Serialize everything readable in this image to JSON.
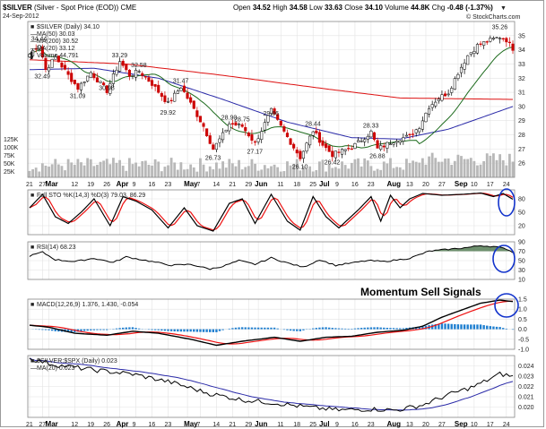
{
  "header": {
    "symbol": "$SILVER",
    "name": "(Silver - Spot Price (EOD))",
    "exchange": "CME",
    "date": "24-Sep-2012",
    "open_label": "Open",
    "open": "34.52",
    "high_label": "High",
    "high": "34.58",
    "low_label": "Low",
    "low": "33.63",
    "close_label": "Close",
    "close": "34.10",
    "volume_label": "Volume",
    "volume": "44.8K",
    "chg_label": "Chg",
    "chg": "-0.48 (-1.37%)",
    "watermark": "© StockCharts.com"
  },
  "annotation": "Momentum Sell Signals",
  "colors": {
    "up": "#000000",
    "down": "#cc0000",
    "ma50": "#2a2aa8",
    "ma200": "#dd1111",
    "ma20": "#1d6b1d",
    "signal": "#ee1111",
    "hist": "#1f7fd0",
    "circle": "#1233cc"
  },
  "chart_data": [
    {
      "id": "price",
      "type": "candlestick",
      "legend": [
        "$SILVER (Daily) 34.10",
        "MA(50) 30.03",
        "MA(200) 30.52",
        "MA(20) 33.12",
        "Volume 44,791"
      ],
      "ylim": [
        25,
        36
      ],
      "y_ticks": [
        "35",
        "34",
        "33",
        "32",
        "31",
        "30",
        "29",
        "28",
        "27",
        "26"
      ],
      "volume_ticks": [
        "125K",
        "100K",
        "75K",
        "50K",
        "25K"
      ],
      "labels": [
        {
          "i": 3,
          "v": 34.44,
          "text": "34.44"
        },
        {
          "i": 4,
          "v": 32.49,
          "text": "32.49"
        },
        {
          "i": 15,
          "v": 31.09,
          "text": "31.09"
        },
        {
          "i": 24,
          "v": 30.98,
          "text": "30.98"
        },
        {
          "i": 28,
          "v": 33.29,
          "text": "33.29"
        },
        {
          "i": 34,
          "v": 32.58,
          "text": "32.58"
        },
        {
          "i": 47,
          "v": 31.47,
          "text": "31.47"
        },
        {
          "i": 43,
          "v": 29.92,
          "text": "29.92"
        },
        {
          "i": 57,
          "v": 26.73,
          "text": "26.73"
        },
        {
          "i": 62,
          "v": 28.9,
          "text": "28.90"
        },
        {
          "i": 66,
          "v": 28.75,
          "text": "28.75"
        },
        {
          "i": 70,
          "v": 27.17,
          "text": "27.17"
        },
        {
          "i": 75,
          "v": 29.86,
          "text": "29.86"
        },
        {
          "i": 84,
          "v": 26.1,
          "text": "26.10"
        },
        {
          "i": 88,
          "v": 28.44,
          "text": "28.44"
        },
        {
          "i": 94,
          "v": 26.42,
          "text": "26.42"
        },
        {
          "i": 106,
          "v": 28.33,
          "text": "28.33"
        },
        {
          "i": 108,
          "v": 26.88,
          "text": "26.88"
        },
        {
          "i": 146,
          "v": 35.26,
          "text": "35.26"
        }
      ]
    },
    {
      "id": "sto",
      "type": "line",
      "legend": "Full STO %K(14,3) %D(3) 79.03, 86.29",
      "ylim": [
        0,
        100
      ],
      "y_ticks": [
        "80",
        "50",
        "20"
      ]
    },
    {
      "id": "rsi",
      "type": "line",
      "legend": "RSI(14) 68.23",
      "ylim": [
        10,
        90
      ],
      "y_ticks": [
        "90",
        "70",
        "50",
        "30",
        "10"
      ]
    },
    {
      "id": "macd",
      "type": "line",
      "legend": "MACD(12,26,9) 1.376, 1.430, -0.054",
      "ylim": [
        -1.0,
        1.5
      ],
      "y_ticks": [
        "1.5",
        "1.0",
        "0.5",
        "0.0",
        "-0.5",
        "-1.0"
      ]
    },
    {
      "id": "ratio",
      "type": "line",
      "legend": "$SILVER:$SPX (Daily) 0.023",
      "legend2": "MA(20) 0.023",
      "ylim": [
        0.019,
        0.025
      ],
      "y_ticks": [
        "0.024",
        "0.023",
        "0.022",
        "0.021",
        "0.020"
      ]
    }
  ],
  "x_axis": [
    {
      "i": 0,
      "text": "21"
    },
    {
      "i": 4,
      "text": "27"
    },
    {
      "i": 6,
      "text": "Mar"
    },
    {
      "i": 14,
      "text": "12"
    },
    {
      "i": 19,
      "text": "19"
    },
    {
      "i": 24,
      "text": "26"
    },
    {
      "i": 28,
      "text": "Apr"
    },
    {
      "i": 33,
      "text": "9"
    },
    {
      "i": 38,
      "text": "16"
    },
    {
      "i": 43,
      "text": "23"
    },
    {
      "i": 49,
      "text": "May"
    },
    {
      "i": 53,
      "text": "7"
    },
    {
      "i": 58,
      "text": "14"
    },
    {
      "i": 63,
      "text": "21"
    },
    {
      "i": 68,
      "text": "29"
    },
    {
      "i": 71,
      "text": "Jun"
    },
    {
      "i": 78,
      "text": "11"
    },
    {
      "i": 83,
      "text": "18"
    },
    {
      "i": 88,
      "text": "25"
    },
    {
      "i": 91,
      "text": "Jul"
    },
    {
      "i": 96,
      "text": "9"
    },
    {
      "i": 101,
      "text": "16"
    },
    {
      "i": 106,
      "text": "23"
    },
    {
      "i": 112,
      "text": "Aug"
    },
    {
      "i": 118,
      "text": "13"
    },
    {
      "i": 123,
      "text": "20"
    },
    {
      "i": 128,
      "text": "27"
    },
    {
      "i": 133,
      "text": "Sep"
    },
    {
      "i": 138,
      "text": "10"
    },
    {
      "i": 143,
      "text": "17"
    },
    {
      "i": 148,
      "text": "24"
    }
  ]
}
